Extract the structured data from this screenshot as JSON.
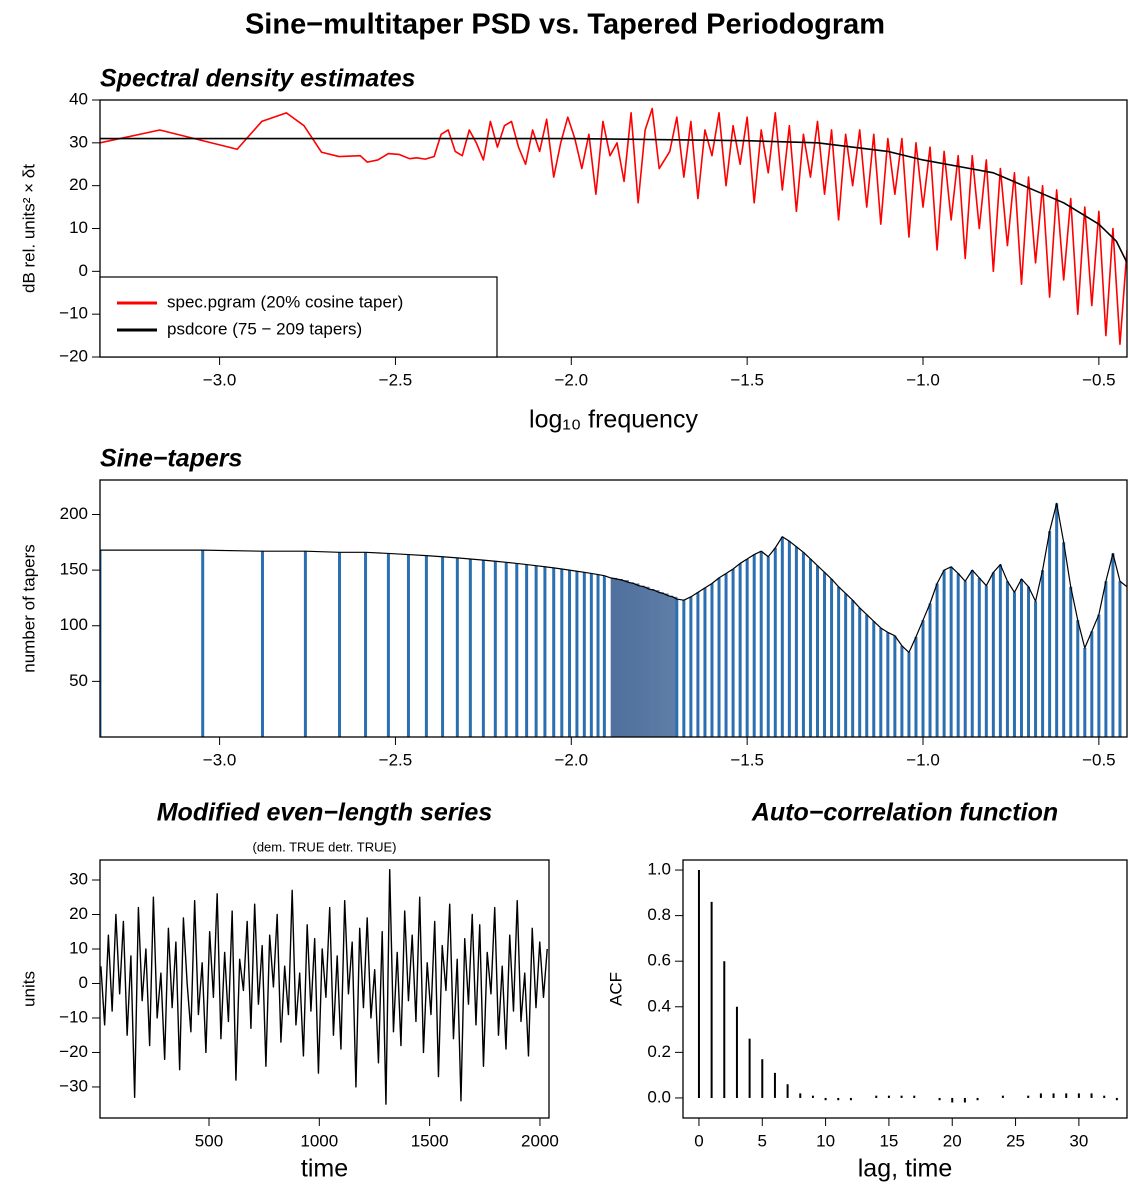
{
  "title": "Sine−multitaper PSD vs. Tapered Periodogram",
  "chart_data": [
    {
      "type": "line",
      "title": "Spectral density estimates",
      "x_label": "log₁₀ frequency",
      "y_label": "dB rel. units² × δt",
      "xlim": [
        -3.34,
        -0.42
      ],
      "ylim": [
        -20,
        40
      ],
      "xticks": [
        {
          "value": -3,
          "label": "−3.0"
        },
        {
          "value": -2.5,
          "label": "−2.5"
        },
        {
          "value": -2,
          "label": "−2.0"
        },
        {
          "value": -1.5,
          "label": "−1.5"
        },
        {
          "value": -1,
          "label": "−1.0"
        },
        {
          "value": -0.5,
          "label": "−0.5"
        }
      ],
      "yticks": [
        {
          "value": -20,
          "label": "−20"
        },
        {
          "value": -10,
          "label": "−10"
        },
        0,
        10,
        20,
        30,
        40
      ],
      "legend": "bottom-left",
      "series": [
        {
          "name": "spec.pgram (20% cosine taper)",
          "color": "#ff0000",
          "x": [
            -3.34,
            -3.17,
            -2.95,
            -2.88,
            -2.81,
            -2.76,
            -2.71,
            -2.66,
            -2.6,
            -2.58,
            -2.55,
            -2.52,
            -2.49,
            -2.46,
            -2.44,
            -2.415,
            -2.39,
            -2.37,
            -2.35,
            -2.33,
            -2.31,
            -2.29,
            -2.27,
            -2.25,
            -2.23,
            -2.21,
            -2.19,
            -2.17,
            -2.15,
            -2.13,
            -2.11,
            -2.09,
            -2.07,
            -2.05,
            -2.03,
            -2.01,
            -1.99,
            -1.97,
            -1.95,
            -1.93,
            -1.91,
            -1.89,
            -1.87,
            -1.85,
            -1.83,
            -1.81,
            -1.79,
            -1.77,
            -1.75,
            -1.72,
            -1.7,
            -1.68,
            -1.66,
            -1.64,
            -1.62,
            -1.6,
            -1.58,
            -1.56,
            -1.54,
            -1.52,
            -1.5,
            -1.48,
            -1.46,
            -1.44,
            -1.42,
            -1.4,
            -1.38,
            -1.36,
            -1.34,
            -1.32,
            -1.3,
            -1.28,
            -1.26,
            -1.24,
            -1.22,
            -1.2,
            -1.18,
            -1.16,
            -1.14,
            -1.12,
            -1.1,
            -1.08,
            -1.06,
            -1.04,
            -1.02,
            -1.0,
            -0.98,
            -0.96,
            -0.94,
            -0.92,
            -0.9,
            -0.88,
            -0.86,
            -0.84,
            -0.82,
            -0.8,
            -0.78,
            -0.76,
            -0.74,
            -0.72,
            -0.7,
            -0.68,
            -0.66,
            -0.64,
            -0.62,
            -0.6,
            -0.58,
            -0.56,
            -0.54,
            -0.52,
            -0.5,
            -0.48,
            -0.46,
            -0.44,
            -0.42
          ],
          "values": [
            30,
            33,
            28.5,
            35,
            37,
            34,
            27.8,
            26.8,
            27,
            25.5,
            26,
            27.5,
            27.3,
            26.3,
            26.5,
            26.2,
            26.8,
            32,
            33,
            28,
            27,
            33,
            30,
            26,
            35,
            29,
            34,
            35,
            29,
            25,
            33,
            28,
            35.5,
            22,
            30,
            36,
            31,
            24,
            32,
            18,
            35,
            27,
            30,
            21,
            37,
            16,
            33,
            38,
            24,
            28,
            36,
            22,
            35,
            17,
            33,
            27,
            37,
            20,
            34,
            25,
            36,
            16,
            33,
            23,
            37,
            19,
            34,
            14,
            32,
            22,
            35,
            18,
            33,
            12,
            32,
            20,
            33,
            15,
            32,
            11,
            31,
            18,
            31,
            8,
            30,
            15,
            29,
            5,
            28,
            12,
            27,
            3,
            27,
            10,
            26,
            0,
            24,
            6,
            23,
            -3,
            22,
            2,
            20,
            -6,
            19,
            -2,
            17,
            -10,
            15,
            -8,
            14,
            -15,
            10,
            -17,
            5
          ]
        },
        {
          "name": "psdcore (75 − 209 tapers)",
          "color": "#000000",
          "x": [
            -3.34,
            -2.5,
            -2.0,
            -1.5,
            -1.3,
            -1.1,
            -1.0,
            -0.9,
            -0.8,
            -0.7,
            -0.6,
            -0.5,
            -0.45,
            -0.42
          ],
          "values": [
            31,
            31,
            31,
            30.5,
            30,
            28,
            26,
            24.5,
            23,
            19.5,
            16,
            11,
            7,
            2
          ]
        }
      ]
    },
    {
      "type": "area",
      "title": "Sine−tapers",
      "y_label": "number of tapers",
      "xlim": [
        -3.34,
        -0.42
      ],
      "ylim": [
        0,
        231
      ],
      "xticks": [
        {
          "value": -3,
          "label": "−3.0"
        },
        {
          "value": -2.5,
          "label": "−2.5"
        },
        {
          "value": -2,
          "label": "−2.0"
        },
        {
          "value": -1.5,
          "label": "−1.5"
        },
        {
          "value": -1,
          "label": "−1.0"
        },
        {
          "value": -0.5,
          "label": "−0.5"
        }
      ],
      "yticks": [
        50,
        100,
        150,
        200
      ],
      "series": [
        {
          "color": "#2c6fb0",
          "outline": "#000000",
          "x": [
            -3.34,
            -3.048,
            -2.878,
            -2.756,
            -2.659,
            -2.585,
            -2.52,
            -2.463,
            -2.412,
            -2.366,
            -2.324,
            -2.287,
            -2.25,
            -2.216,
            -2.185,
            -2.155,
            -2.127,
            -2.1,
            -2.075,
            -2.05,
            -2.027,
            -2.005,
            -1.984,
            -1.963,
            -1.943,
            -1.924,
            -1.906,
            -1.888,
            -1.871,
            -1.855,
            -1.838,
            -1.823,
            -1.808,
            -1.793,
            -1.779,
            -1.765,
            -1.751,
            -1.738,
            -1.725,
            -1.712,
            -1.7,
            -1.68,
            -1.66,
            -1.64,
            -1.62,
            -1.6,
            -1.58,
            -1.56,
            -1.54,
            -1.52,
            -1.5,
            -1.48,
            -1.46,
            -1.44,
            -1.42,
            -1.4,
            -1.38,
            -1.36,
            -1.34,
            -1.32,
            -1.3,
            -1.28,
            -1.26,
            -1.24,
            -1.22,
            -1.2,
            -1.18,
            -1.16,
            -1.14,
            -1.12,
            -1.1,
            -1.08,
            -1.06,
            -1.04,
            -1.02,
            -1.0,
            -0.98,
            -0.96,
            -0.94,
            -0.92,
            -0.9,
            -0.88,
            -0.86,
            -0.84,
            -0.82,
            -0.8,
            -0.78,
            -0.76,
            -0.74,
            -0.72,
            -0.7,
            -0.68,
            -0.66,
            -0.64,
            -0.62,
            -0.6,
            -0.58,
            -0.56,
            -0.54,
            -0.52,
            -0.5,
            -0.48,
            -0.46,
            -0.44,
            -0.42
          ],
          "values": [
            168,
            168,
            167,
            167,
            166,
            166,
            165,
            164,
            163,
            162,
            161,
            160,
            159,
            158,
            157,
            156,
            155,
            154,
            153,
            152,
            151,
            150,
            149,
            148,
            147,
            146,
            145,
            143,
            142,
            141,
            139,
            138,
            136,
            135,
            133,
            132,
            130,
            129,
            127,
            126,
            124,
            123,
            126,
            130,
            134,
            138,
            143,
            147,
            151,
            156,
            160,
            164,
            167,
            162,
            170,
            180,
            176,
            171,
            166,
            160,
            154,
            148,
            142,
            135,
            129,
            123,
            116,
            110,
            104,
            98,
            94,
            91,
            82,
            76,
            90,
            105,
            120,
            138,
            150,
            153,
            147,
            140,
            150,
            143,
            136,
            148,
            155,
            140,
            130,
            142,
            135,
            122,
            150,
            185,
            210,
            175,
            135,
            105,
            80,
            95,
            110,
            140,
            165,
            140,
            135
          ]
        }
      ]
    },
    {
      "type": "line",
      "title": "Modified even−length series",
      "subtitle": "(dem. TRUE detr. TRUE)",
      "x_label": "time",
      "y_label": "units",
      "xlim": [
        6,
        2041
      ],
      "ylim": [
        -39,
        35.8
      ],
      "xticks": [
        500,
        1000,
        1500,
        2000
      ],
      "yticks": [
        {
          "value": -30,
          "label": "−30"
        },
        {
          "value": -20,
          "label": "−20"
        },
        {
          "value": -10,
          "label": "−10"
        },
        0,
        10,
        20,
        30
      ],
      "series": [
        {
          "color": "#000000",
          "x": [
            10,
            27,
            44,
            61,
            78,
            95,
            112,
            129,
            146,
            163,
            180,
            197,
            214,
            231,
            248,
            265,
            282,
            299,
            316,
            333,
            350,
            367,
            384,
            401,
            418,
            435,
            452,
            469,
            486,
            503,
            520,
            537,
            554,
            571,
            588,
            605,
            622,
            639,
            656,
            673,
            690,
            707,
            724,
            741,
            758,
            775,
            792,
            809,
            826,
            843,
            860,
            877,
            894,
            911,
            928,
            945,
            962,
            979,
            996,
            1013,
            1030,
            1047,
            1064,
            1081,
            1098,
            1115,
            1132,
            1149,
            1166,
            1183,
            1200,
            1217,
            1234,
            1251,
            1268,
            1285,
            1302,
            1319,
            1336,
            1353,
            1370,
            1387,
            1404,
            1421,
            1438,
            1455,
            1472,
            1489,
            1506,
            1523,
            1540,
            1557,
            1574,
            1591,
            1608,
            1625,
            1642,
            1659,
            1676,
            1693,
            1710,
            1727,
            1744,
            1761,
            1778,
            1795,
            1812,
            1829,
            1846,
            1863,
            1880,
            1897,
            1914,
            1931,
            1948,
            1965,
            1982,
            1999,
            2016,
            2033
          ],
          "values": [
            5,
            -12,
            14,
            -8,
            20,
            -3,
            18,
            -15,
            8,
            -33,
            22,
            -5,
            10,
            -18,
            25,
            -10,
            3,
            -22,
            16,
            -7,
            12,
            -25,
            19,
            0,
            -14,
            24,
            -9,
            6,
            -20,
            15,
            -4,
            26,
            -16,
            9,
            -11,
            21,
            -28,
            7,
            -2,
            18,
            -13,
            23,
            -6,
            11,
            -24,
            14,
            -1,
            20,
            -17,
            5,
            -9,
            27,
            -12,
            3,
            -21,
            17,
            -8,
            13,
            -26,
            10,
            -4,
            22,
            -15,
            8,
            -19,
            24,
            -3,
            12,
            -30,
            16,
            -7,
            19,
            -10,
            4,
            -23,
            15,
            -35,
            33,
            -14,
            9,
            -18,
            21,
            -5,
            14,
            -11,
            25,
            -20,
            6,
            -9,
            18,
            -27,
            11,
            -2,
            23,
            -16,
            7,
            -34,
            13,
            -6,
            20,
            -12,
            17,
            -24,
            9,
            -3,
            22,
            -15,
            5,
            -19,
            14,
            -8,
            24,
            -11,
            3,
            -21,
            16,
            -7,
            12,
            -4,
            10
          ]
        }
      ]
    },
    {
      "type": "bar",
      "title": "Auto−correlation function",
      "x_label": "lag, time",
      "y_label": "ACF",
      "xlim": [
        -1.26,
        33.8
      ],
      "ylim": [
        -0.088,
        1.044
      ],
      "xticks": [
        0,
        5,
        10,
        15,
        20,
        25,
        30
      ],
      "yticks": [
        {
          "value": 0,
          "label": "0.0"
        },
        0.2,
        0.4,
        0.6,
        0.8,
        {
          "value": 1,
          "label": "1.0"
        }
      ],
      "series": [
        {
          "color": "#000000",
          "x": [
            0,
            1,
            2,
            3,
            4,
            5,
            6,
            7,
            8,
            9,
            10,
            11,
            12,
            13,
            14,
            15,
            16,
            17,
            18,
            19,
            20,
            21,
            22,
            23,
            24,
            25,
            26,
            27,
            28,
            29,
            30,
            31,
            32,
            33
          ],
          "values": [
            1.0,
            0.86,
            0.6,
            0.4,
            0.26,
            0.17,
            0.11,
            0.06,
            0.02,
            0.01,
            -0.01,
            -0.01,
            -0.01,
            0.0,
            0.01,
            0.01,
            0.01,
            0.01,
            0.0,
            -0.01,
            -0.02,
            -0.02,
            -0.01,
            0.0,
            0.01,
            0.0,
            0.01,
            0.02,
            0.02,
            0.02,
            0.02,
            0.02,
            0.01,
            -0.01
          ]
        }
      ]
    }
  ]
}
